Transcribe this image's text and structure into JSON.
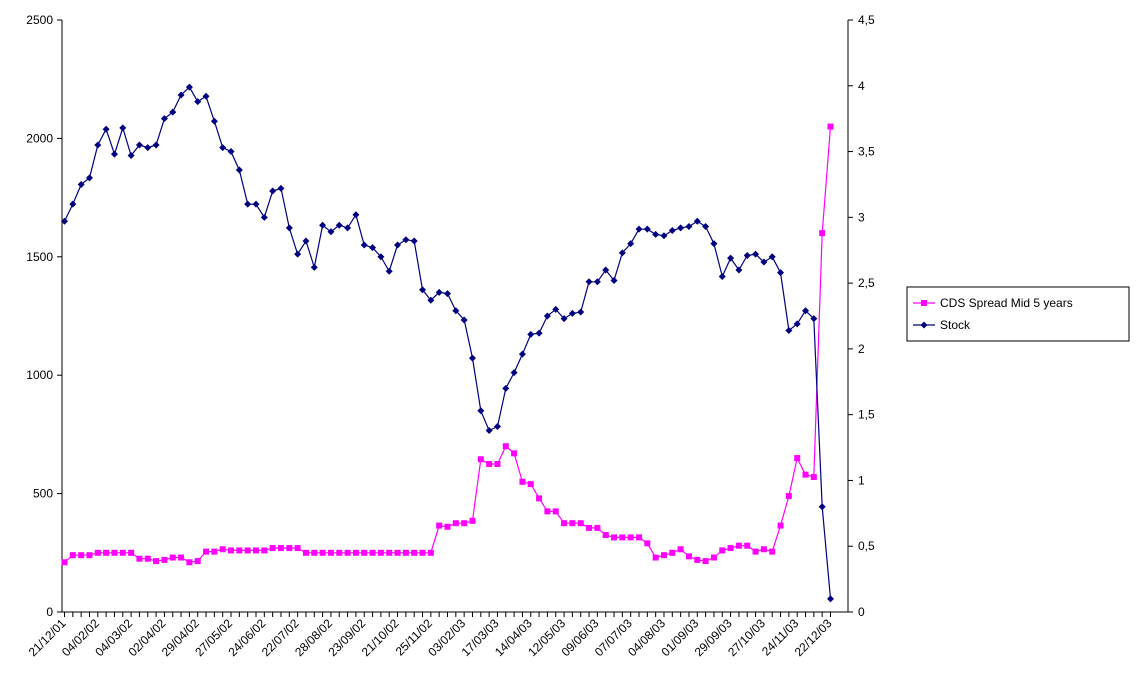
{
  "chart_data": {
    "type": "line",
    "title": "",
    "xlabel": "",
    "ylabel": "",
    "ylim_left": [
      0,
      2500
    ],
    "ylim_right": [
      0,
      4.5
    ],
    "y_ticks_left": [
      "0",
      "500",
      "1000",
      "1500",
      "2000",
      "2500"
    ],
    "y_ticks_right": [
      "0",
      "0,5",
      "1",
      "1,5",
      "2",
      "2,5",
      "3",
      "3,5",
      "4",
      "4,5"
    ],
    "x_tick_labels": [
      "21/12/01",
      "04/02/02",
      "04/03/02",
      "02/04/02",
      "29/04/02",
      "27/05/02",
      "24/06/02",
      "22/07/02",
      "28/08/02",
      "23/09/02",
      "21/10/02",
      "25/11/02",
      "03/02/03",
      "17/03/03",
      "14/04/03",
      "12/05/03",
      "09/06/03",
      "07/07/03",
      "04/08/03",
      "01/09/03",
      "29/09/03",
      "27/10/03",
      "24/11/03",
      "22/12/03"
    ],
    "legend_position": "right",
    "grid": false,
    "series": [
      {
        "name": "CDS Spread Mid 5 years",
        "axis": "left",
        "color": "#ff00ff",
        "marker": "square",
        "values": [
          210,
          240,
          240,
          240,
          250,
          250,
          250,
          250,
          250,
          225,
          225,
          215,
          220,
          230,
          230,
          210,
          215,
          255,
          255,
          265,
          260,
          260,
          260,
          260,
          260,
          270,
          270,
          270,
          270,
          250,
          250,
          250,
          250,
          250,
          250,
          250,
          250,
          250,
          250,
          250,
          250,
          250,
          250,
          250,
          250,
          365,
          360,
          375,
          375,
          385,
          645,
          625,
          625,
          700,
          670,
          550,
          540,
          480,
          425,
          425,
          375,
          375,
          375,
          355,
          355,
          325,
          315,
          315,
          315,
          315,
          290,
          230,
          240,
          250,
          265,
          235,
          220,
          215,
          230,
          260,
          270,
          280,
          280,
          255,
          265,
          255,
          365,
          490,
          650,
          580,
          570,
          1600,
          2050
        ]
      },
      {
        "name": "Stock",
        "axis": "right",
        "color": "#000080",
        "marker": "diamond",
        "values": [
          2.97,
          3.1,
          3.25,
          3.3,
          3.55,
          3.67,
          3.48,
          3.68,
          3.47,
          3.55,
          3.53,
          3.55,
          3.75,
          3.8,
          3.93,
          3.99,
          3.88,
          3.92,
          3.73,
          3.53,
          3.5,
          3.36,
          3.1,
          3.1,
          3.0,
          3.2,
          3.22,
          2.92,
          2.72,
          2.82,
          2.62,
          2.94,
          2.89,
          2.94,
          2.92,
          3.02,
          2.79,
          2.77,
          2.7,
          2.59,
          2.79,
          2.83,
          2.82,
          2.45,
          2.37,
          2.43,
          2.42,
          2.29,
          2.22,
          1.93,
          1.53,
          1.38,
          1.41,
          1.7,
          1.82,
          1.96,
          2.11,
          2.12,
          2.25,
          2.3,
          2.23,
          2.27,
          2.28,
          2.51,
          2.51,
          2.6,
          2.52,
          2.73,
          2.8,
          2.91,
          2.91,
          2.87,
          2.86,
          2.9,
          2.92,
          2.93,
          2.97,
          2.93,
          2.8,
          2.55,
          2.69,
          2.6,
          2.71,
          2.72,
          2.66,
          2.7,
          2.58,
          2.14,
          2.19,
          2.29,
          2.23,
          0.8,
          0.1
        ]
      }
    ]
  }
}
